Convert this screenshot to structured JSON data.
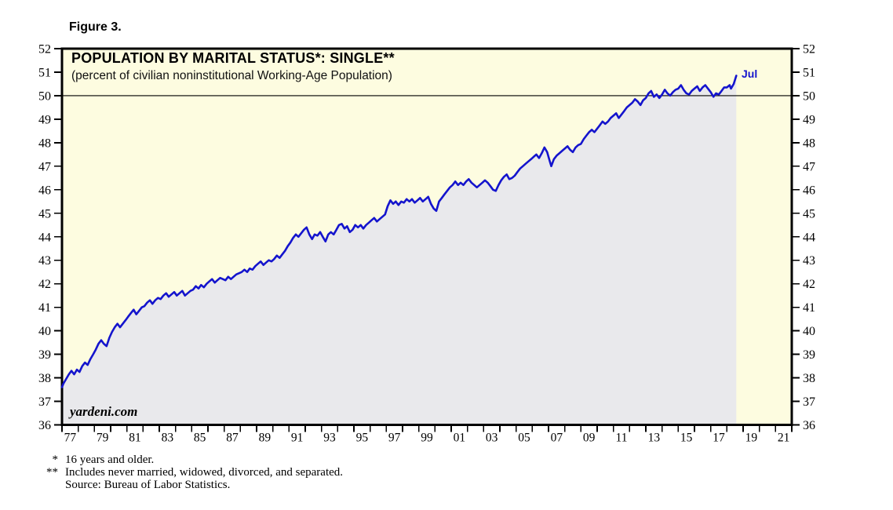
{
  "figure_label": "Figure 3.",
  "chart": {
    "title": "POPULATION BY MARITAL STATUS*: SINGLE**",
    "subtitle": "(percent of civilian noninstitutional Working-Age Population)",
    "watermark": "yardeni.com",
    "last_point_label": "Jul"
  },
  "footnotes": [
    {
      "marker": "*",
      "text": "16 years and older."
    },
    {
      "marker": "**",
      "text": "Includes never married, widowed, divorced, and separated."
    },
    {
      "marker": "",
      "text": "Source: Bureau of Labor Statistics."
    }
  ],
  "colors": {
    "line": "#1414CD",
    "plot_background": "#FDFCE0",
    "area_fill": "#E9E9EC",
    "frame": "#000000",
    "tick_label": "#000000"
  },
  "chart_data": {
    "type": "area",
    "title": "POPULATION BY MARITAL STATUS*: SINGLE**",
    "subtitle": "(percent of civilian noninstitutional Working-Age Population)",
    "x_range": [
      1977,
      2022
    ],
    "y_range": [
      36,
      52
    ],
    "y_ticks": [
      36,
      37,
      38,
      39,
      40,
      41,
      42,
      43,
      44,
      45,
      46,
      47,
      48,
      49,
      50,
      51,
      52
    ],
    "y_tick_labels_both_sides": true,
    "x_tick_interval": 1,
    "x_label_start": 1977,
    "x_label_step": 2,
    "x_tick_labels": [
      "77",
      "79",
      "81",
      "83",
      "85",
      "87",
      "89",
      "91",
      "93",
      "95",
      "97",
      "99",
      "01",
      "03",
      "05",
      "07",
      "09",
      "11",
      "13",
      "15",
      "17",
      "19",
      "21"
    ],
    "reference_line_y": 50,
    "shaded_to_x": 2018.58,
    "grid": false,
    "legend": false,
    "last_point": {
      "x": 2018.58,
      "y": 50.85,
      "label": "Jul"
    },
    "series": {
      "points": [
        [
          1977.0,
          37.6
        ],
        [
          1977.08,
          37.75
        ],
        [
          1977.25,
          37.95
        ],
        [
          1977.42,
          38.15
        ],
        [
          1977.58,
          38.3
        ],
        [
          1977.75,
          38.15
        ],
        [
          1977.92,
          38.35
        ],
        [
          1978.08,
          38.25
        ],
        [
          1978.25,
          38.5
        ],
        [
          1978.42,
          38.65
        ],
        [
          1978.58,
          38.55
        ],
        [
          1978.75,
          38.8
        ],
        [
          1978.92,
          39.0
        ],
        [
          1979.08,
          39.2
        ],
        [
          1979.25,
          39.45
        ],
        [
          1979.42,
          39.6
        ],
        [
          1979.58,
          39.45
        ],
        [
          1979.75,
          39.35
        ],
        [
          1979.92,
          39.7
        ],
        [
          1980.08,
          39.95
        ],
        [
          1980.25,
          40.15
        ],
        [
          1980.42,
          40.3
        ],
        [
          1980.58,
          40.15
        ],
        [
          1980.75,
          40.3
        ],
        [
          1980.92,
          40.45
        ],
        [
          1981.08,
          40.6
        ],
        [
          1981.25,
          40.75
        ],
        [
          1981.42,
          40.9
        ],
        [
          1981.58,
          40.7
        ],
        [
          1981.75,
          40.85
        ],
        [
          1981.92,
          41.0
        ],
        [
          1982.08,
          41.05
        ],
        [
          1982.25,
          41.2
        ],
        [
          1982.42,
          41.3
        ],
        [
          1982.58,
          41.15
        ],
        [
          1982.75,
          41.3
        ],
        [
          1982.92,
          41.4
        ],
        [
          1983.08,
          41.35
        ],
        [
          1983.25,
          41.5
        ],
        [
          1983.42,
          41.6
        ],
        [
          1983.58,
          41.45
        ],
        [
          1983.75,
          41.55
        ],
        [
          1983.92,
          41.65
        ],
        [
          1984.08,
          41.5
        ],
        [
          1984.25,
          41.6
        ],
        [
          1984.42,
          41.7
        ],
        [
          1984.58,
          41.5
        ],
        [
          1984.75,
          41.6
        ],
        [
          1984.92,
          41.7
        ],
        [
          1985.08,
          41.75
        ],
        [
          1985.25,
          41.9
        ],
        [
          1985.42,
          41.8
        ],
        [
          1985.58,
          41.95
        ],
        [
          1985.75,
          41.85
        ],
        [
          1985.92,
          42.0
        ],
        [
          1986.08,
          42.1
        ],
        [
          1986.25,
          42.2
        ],
        [
          1986.42,
          42.05
        ],
        [
          1986.58,
          42.15
        ],
        [
          1986.75,
          42.25
        ],
        [
          1986.92,
          42.2
        ],
        [
          1987.08,
          42.15
        ],
        [
          1987.25,
          42.3
        ],
        [
          1987.42,
          42.2
        ],
        [
          1987.58,
          42.3
        ],
        [
          1987.75,
          42.4
        ],
        [
          1987.92,
          42.45
        ],
        [
          1988.08,
          42.5
        ],
        [
          1988.25,
          42.6
        ],
        [
          1988.42,
          42.5
        ],
        [
          1988.58,
          42.65
        ],
        [
          1988.75,
          42.6
        ],
        [
          1988.92,
          42.75
        ],
        [
          1989.08,
          42.85
        ],
        [
          1989.25,
          42.95
        ],
        [
          1989.42,
          42.8
        ],
        [
          1989.58,
          42.9
        ],
        [
          1989.75,
          43.0
        ],
        [
          1989.92,
          42.95
        ],
        [
          1990.08,
          43.05
        ],
        [
          1990.25,
          43.2
        ],
        [
          1990.42,
          43.1
        ],
        [
          1990.58,
          43.25
        ],
        [
          1990.75,
          43.4
        ],
        [
          1990.92,
          43.6
        ],
        [
          1991.08,
          43.75
        ],
        [
          1991.25,
          43.95
        ],
        [
          1991.42,
          44.1
        ],
        [
          1991.58,
          44.0
        ],
        [
          1991.75,
          44.15
        ],
        [
          1991.92,
          44.3
        ],
        [
          1992.08,
          44.4
        ],
        [
          1992.25,
          44.1
        ],
        [
          1992.42,
          43.9
        ],
        [
          1992.58,
          44.1
        ],
        [
          1992.75,
          44.05
        ],
        [
          1992.92,
          44.2
        ],
        [
          1993.08,
          44.0
        ],
        [
          1993.25,
          43.8
        ],
        [
          1993.42,
          44.1
        ],
        [
          1993.58,
          44.2
        ],
        [
          1993.75,
          44.1
        ],
        [
          1993.92,
          44.3
        ],
        [
          1994.08,
          44.5
        ],
        [
          1994.25,
          44.55
        ],
        [
          1994.42,
          44.35
        ],
        [
          1994.58,
          44.45
        ],
        [
          1994.75,
          44.2
        ],
        [
          1994.92,
          44.3
        ],
        [
          1995.08,
          44.5
        ],
        [
          1995.25,
          44.4
        ],
        [
          1995.42,
          44.5
        ],
        [
          1995.58,
          44.35
        ],
        [
          1995.75,
          44.5
        ],
        [
          1995.92,
          44.6
        ],
        [
          1996.08,
          44.7
        ],
        [
          1996.25,
          44.8
        ],
        [
          1996.42,
          44.65
        ],
        [
          1996.58,
          44.75
        ],
        [
          1996.75,
          44.85
        ],
        [
          1996.92,
          44.95
        ],
        [
          1997.08,
          45.3
        ],
        [
          1997.25,
          45.55
        ],
        [
          1997.42,
          45.4
        ],
        [
          1997.58,
          45.5
        ],
        [
          1997.75,
          45.35
        ],
        [
          1997.92,
          45.5
        ],
        [
          1998.08,
          45.45
        ],
        [
          1998.25,
          45.6
        ],
        [
          1998.42,
          45.5
        ],
        [
          1998.58,
          45.6
        ],
        [
          1998.75,
          45.45
        ],
        [
          1998.92,
          45.55
        ],
        [
          1999.08,
          45.65
        ],
        [
          1999.25,
          45.5
        ],
        [
          1999.42,
          45.6
        ],
        [
          1999.58,
          45.7
        ],
        [
          1999.75,
          45.4
        ],
        [
          1999.92,
          45.2
        ],
        [
          2000.08,
          45.1
        ],
        [
          2000.25,
          45.5
        ],
        [
          2000.42,
          45.65
        ],
        [
          2000.58,
          45.8
        ],
        [
          2000.75,
          45.95
        ],
        [
          2000.92,
          46.1
        ],
        [
          2001.08,
          46.2
        ],
        [
          2001.25,
          46.35
        ],
        [
          2001.42,
          46.2
        ],
        [
          2001.58,
          46.3
        ],
        [
          2001.75,
          46.2
        ],
        [
          2001.92,
          46.35
        ],
        [
          2002.08,
          46.45
        ],
        [
          2002.25,
          46.3
        ],
        [
          2002.42,
          46.2
        ],
        [
          2002.58,
          46.1
        ],
        [
          2002.75,
          46.2
        ],
        [
          2002.92,
          46.3
        ],
        [
          2003.08,
          46.4
        ],
        [
          2003.25,
          46.3
        ],
        [
          2003.42,
          46.15
        ],
        [
          2003.58,
          46.0
        ],
        [
          2003.75,
          45.95
        ],
        [
          2003.92,
          46.2
        ],
        [
          2004.08,
          46.4
        ],
        [
          2004.25,
          46.55
        ],
        [
          2004.42,
          46.65
        ],
        [
          2004.58,
          46.45
        ],
        [
          2004.75,
          46.5
        ],
        [
          2004.92,
          46.6
        ],
        [
          2005.08,
          46.75
        ],
        [
          2005.25,
          46.9
        ],
        [
          2005.42,
          47.0
        ],
        [
          2005.58,
          47.1
        ],
        [
          2005.75,
          47.2
        ],
        [
          2005.92,
          47.3
        ],
        [
          2006.08,
          47.4
        ],
        [
          2006.25,
          47.5
        ],
        [
          2006.42,
          47.35
        ],
        [
          2006.58,
          47.55
        ],
        [
          2006.75,
          47.8
        ],
        [
          2006.92,
          47.6
        ],
        [
          2007.08,
          47.2
        ],
        [
          2007.17,
          47.0
        ],
        [
          2007.33,
          47.3
        ],
        [
          2007.5,
          47.45
        ],
        [
          2007.67,
          47.55
        ],
        [
          2007.83,
          47.65
        ],
        [
          2008.0,
          47.75
        ],
        [
          2008.17,
          47.85
        ],
        [
          2008.33,
          47.7
        ],
        [
          2008.5,
          47.6
        ],
        [
          2008.67,
          47.8
        ],
        [
          2008.83,
          47.9
        ],
        [
          2009.0,
          47.95
        ],
        [
          2009.17,
          48.15
        ],
        [
          2009.33,
          48.3
        ],
        [
          2009.5,
          48.45
        ],
        [
          2009.67,
          48.55
        ],
        [
          2009.83,
          48.45
        ],
        [
          2010.0,
          48.6
        ],
        [
          2010.17,
          48.75
        ],
        [
          2010.33,
          48.9
        ],
        [
          2010.5,
          48.8
        ],
        [
          2010.67,
          48.9
        ],
        [
          2010.83,
          49.05
        ],
        [
          2011.0,
          49.15
        ],
        [
          2011.17,
          49.25
        ],
        [
          2011.33,
          49.05
        ],
        [
          2011.5,
          49.2
        ],
        [
          2011.67,
          49.35
        ],
        [
          2011.83,
          49.5
        ],
        [
          2012.0,
          49.6
        ],
        [
          2012.17,
          49.7
        ],
        [
          2012.33,
          49.85
        ],
        [
          2012.5,
          49.75
        ],
        [
          2012.67,
          49.6
        ],
        [
          2012.83,
          49.8
        ],
        [
          2013.0,
          49.9
        ],
        [
          2013.17,
          50.1
        ],
        [
          2013.33,
          50.2
        ],
        [
          2013.5,
          49.95
        ],
        [
          2013.67,
          50.05
        ],
        [
          2013.83,
          49.9
        ],
        [
          2014.0,
          50.05
        ],
        [
          2014.17,
          50.25
        ],
        [
          2014.33,
          50.1
        ],
        [
          2014.5,
          50.0
        ],
        [
          2014.67,
          50.15
        ],
        [
          2014.83,
          50.25
        ],
        [
          2015.0,
          50.3
        ],
        [
          2015.17,
          50.45
        ],
        [
          2015.33,
          50.25
        ],
        [
          2015.5,
          50.1
        ],
        [
          2015.67,
          50.05
        ],
        [
          2015.83,
          50.2
        ],
        [
          2016.0,
          50.3
        ],
        [
          2016.17,
          50.4
        ],
        [
          2016.33,
          50.2
        ],
        [
          2016.5,
          50.35
        ],
        [
          2016.67,
          50.45
        ],
        [
          2016.83,
          50.3
        ],
        [
          2017.0,
          50.15
        ],
        [
          2017.17,
          49.95
        ],
        [
          2017.33,
          50.1
        ],
        [
          2017.5,
          50.05
        ],
        [
          2017.67,
          50.2
        ],
        [
          2017.83,
          50.35
        ],
        [
          2018.0,
          50.35
        ],
        [
          2018.17,
          50.45
        ],
        [
          2018.25,
          50.3
        ],
        [
          2018.42,
          50.5
        ],
        [
          2018.58,
          50.85
        ]
      ]
    }
  }
}
